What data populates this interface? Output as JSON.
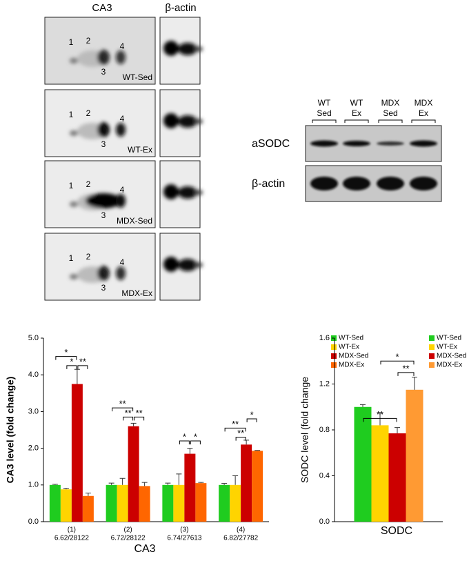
{
  "blots_2d": {
    "header_ca3": "CA3",
    "header_actin": "β-actin",
    "panels": [
      {
        "label": "WT-Sed",
        "spots": [
          "1",
          "2",
          "3",
          "4"
        ]
      },
      {
        "label": "WT-Ex",
        "spots": [
          "1",
          "2",
          "3",
          "4"
        ]
      },
      {
        "label": "MDX-Sed",
        "spots": [
          "1",
          "2",
          "3",
          "4"
        ]
      },
      {
        "label": "MDX-Ex",
        "spots": [
          "1",
          "2",
          "3",
          "4"
        ]
      }
    ]
  },
  "western": {
    "lanes": [
      [
        "WT",
        "Sed"
      ],
      [
        "WT",
        "Ex"
      ],
      [
        "MDX",
        "Sed"
      ],
      [
        "MDX",
        "Ex"
      ]
    ],
    "rows": [
      "aSODC",
      "β-actin"
    ]
  },
  "chart_data": [
    {
      "type": "bar",
      "y_label": "CA3 level (fold change)",
      "x_label": "CA3",
      "categories": [
        [
          "(1)",
          "6.62/28122"
        ],
        [
          "(2)",
          "6.72/28122"
        ],
        [
          "(3)",
          "6.74/27613"
        ],
        [
          "(4)",
          "6.82/27782"
        ]
      ],
      "ylim": [
        0,
        5
      ],
      "yticks": [
        {
          "value": 0,
          "label": "0.0"
        },
        {
          "value": 1,
          "label": "1.0"
        },
        {
          "value": 2,
          "label": "2.0"
        },
        {
          "value": 3,
          "label": "3.0"
        },
        {
          "value": 4,
          "label": "4.0"
        },
        {
          "value": 5,
          "label": "5.0"
        }
      ],
      "series": [
        {
          "name": "WT-Sed",
          "color": "#1fcc1f",
          "values": [
            1.0,
            1.0,
            1.0,
            1.0
          ],
          "errors": [
            0.02,
            0.05,
            0.05,
            0.04
          ]
        },
        {
          "name": "WT-Ex",
          "color": "#ffd400",
          "values": [
            0.88,
            1.0,
            1.0,
            1.0
          ],
          "errors": [
            0.03,
            0.18,
            0.3,
            0.25
          ]
        },
        {
          "name": "MDX-Sed",
          "color": "#cc0000",
          "values": [
            3.75,
            2.6,
            1.85,
            2.1
          ],
          "errors": [
            0.4,
            0.08,
            0.15,
            0.12
          ]
        },
        {
          "name": "MDX-Ex",
          "color": "#ff6600",
          "values": [
            0.7,
            0.97,
            1.05,
            1.93
          ],
          "errors": [
            0.08,
            0.1,
            0.02,
            0.01
          ]
        }
      ],
      "annotations": [
        {
          "category": 0,
          "from": 0,
          "to": 2,
          "y": 4.5,
          "label": "*"
        },
        {
          "category": 0,
          "from": 1,
          "to": 2,
          "y": 4.25,
          "label": "*"
        },
        {
          "category": 0,
          "from": 2,
          "to": 3,
          "y": 4.25,
          "label": "**"
        },
        {
          "category": 1,
          "from": 0,
          "to": 2,
          "y": 3.1,
          "label": "**"
        },
        {
          "category": 1,
          "from": 1,
          "to": 2,
          "y": 2.85,
          "label": "**"
        },
        {
          "category": 1,
          "from": 2,
          "to": 3,
          "y": 2.85,
          "label": "**"
        },
        {
          "category": 2,
          "from": 1,
          "to": 2,
          "y": 2.2,
          "label": "*"
        },
        {
          "category": 2,
          "from": 2,
          "to": 3,
          "y": 2.2,
          "label": "*"
        },
        {
          "category": 3,
          "from": 0,
          "to": 2,
          "y": 2.55,
          "label": "**"
        },
        {
          "category": 3,
          "from": 1,
          "to": 2,
          "y": 2.3,
          "label": "**"
        },
        {
          "category": 3,
          "from": 2,
          "to": 3,
          "y": 2.8,
          "label": "*"
        }
      ]
    },
    {
      "type": "bar",
      "y_label": "SODC level (fold change",
      "x_label": "SODC",
      "categories": [
        null
      ],
      "ylim": [
        0,
        1.6
      ],
      "yticks": [
        {
          "value": 0,
          "label": "0.0"
        },
        0.4,
        0.8,
        1.2,
        1.6
      ],
      "series": [
        {
          "name": "WT-Sed",
          "color": "#1fcc1f",
          "values": [
            1.0
          ],
          "errors": [
            0.02
          ]
        },
        {
          "name": "WT-Ex",
          "color": "#ffd400",
          "values": [
            0.84
          ],
          "errors": [
            0.11
          ]
        },
        {
          "name": "MDX-Sed",
          "color": "#cc0000",
          "values": [
            0.77
          ],
          "errors": [
            0.05
          ]
        },
        {
          "name": "MDX-Ex",
          "color": "#ff9a33",
          "values": [
            1.15
          ],
          "errors": [
            0.11
          ]
        }
      ],
      "annotations": [
        {
          "category": 0,
          "from": 0,
          "to": 2,
          "y": 0.9,
          "label": "**"
        },
        {
          "category": 0,
          "from": 1,
          "to": 3,
          "y": 1.4,
          "label": "*"
        },
        {
          "category": 0,
          "from": 2,
          "to": 3,
          "y": 1.3,
          "label": "**"
        }
      ]
    }
  ]
}
